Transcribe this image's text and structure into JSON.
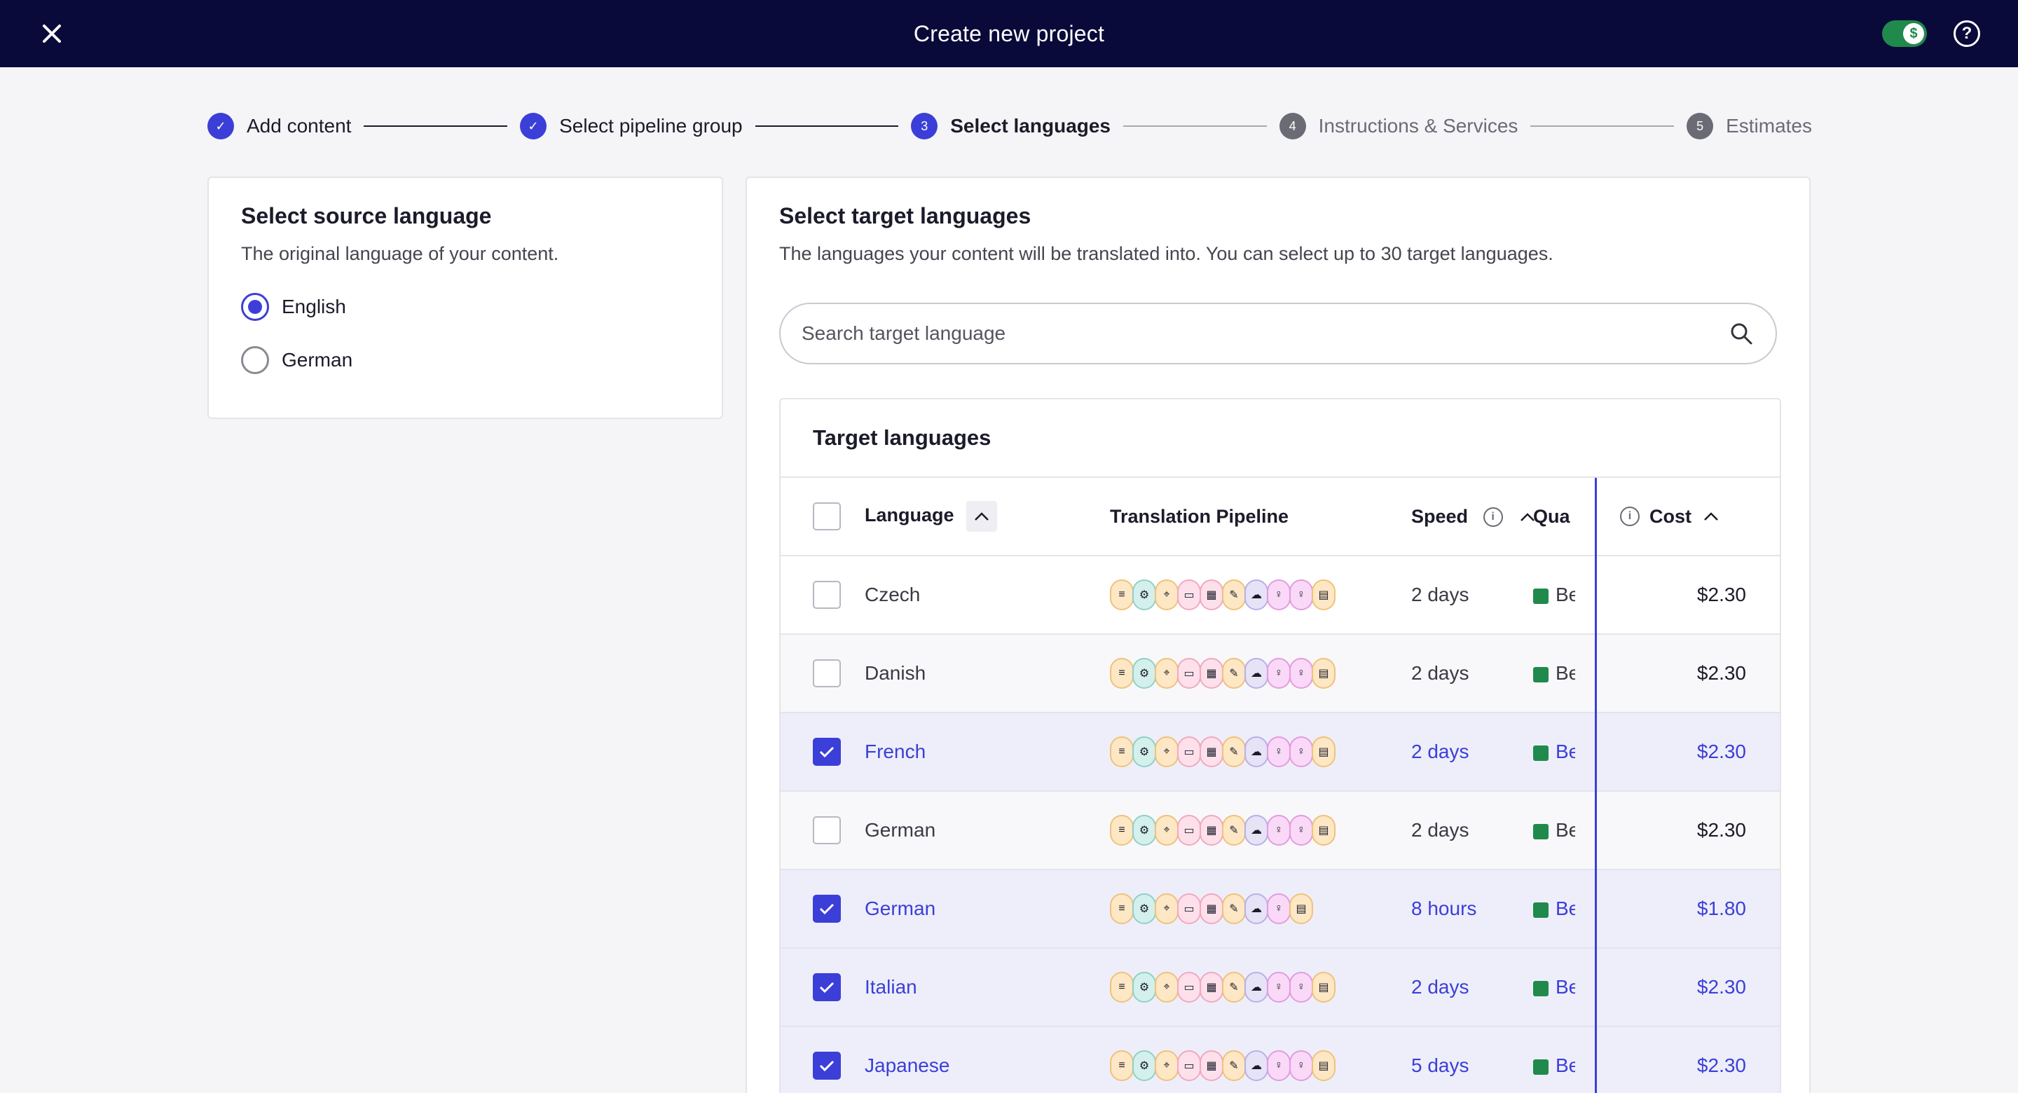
{
  "topbar": {
    "title": "Create new project",
    "close_icon": "close-icon",
    "toggle_symbol": "$",
    "help_symbol": "?"
  },
  "stepper": {
    "steps": [
      {
        "label": "Add content",
        "state": "done",
        "marker": "✓"
      },
      {
        "label": "Select pipeline group",
        "state": "done",
        "marker": "✓"
      },
      {
        "label": "Select languages",
        "state": "active",
        "marker": "3"
      },
      {
        "label": "Instructions & Services",
        "state": "pending",
        "marker": "4"
      },
      {
        "label": "Estimates",
        "state": "pending",
        "marker": "5"
      }
    ]
  },
  "source": {
    "title": "Select source language",
    "subtitle": "The original language of your content.",
    "options": [
      {
        "label": "English",
        "checked": true
      },
      {
        "label": "German",
        "checked": false
      }
    ]
  },
  "target": {
    "title": "Select target languages",
    "subtitle": "The languages your content will be translated into. You can select up to 30 target languages.",
    "search_placeholder": "Search target language",
    "table_title": "Target languages",
    "headers": {
      "language": "Language",
      "pipeline": "Translation Pipeline",
      "speed": "Speed",
      "quality": "Qua",
      "cost": "Cost"
    },
    "rows": [
      {
        "language": "Czech",
        "speed": "2 days",
        "quality": "Be",
        "cost": "$2.30",
        "checked": false
      },
      {
        "language": "Danish",
        "speed": "2 days",
        "quality": "Be",
        "cost": "$2.30",
        "checked": false
      },
      {
        "language": "French",
        "speed": "2 days",
        "quality": "Be",
        "cost": "$2.30",
        "checked": true
      },
      {
        "language": "German",
        "speed": "2 days",
        "quality": "Be",
        "cost": "$2.30",
        "checked": false
      },
      {
        "language": "German",
        "speed": "8 hours",
        "quality": "Be",
        "cost": "$1.80",
        "checked": true
      },
      {
        "language": "Italian",
        "speed": "2 days",
        "quality": "Be",
        "cost": "$2.30",
        "checked": true
      },
      {
        "language": "Japanese",
        "speed": "5 days",
        "quality": "Be",
        "cost": "$2.30",
        "checked": true
      }
    ]
  },
  "colors": {
    "primary": "#3b3fd8",
    "topbar": "#0a0a3a",
    "success": "#1f8a4c"
  }
}
